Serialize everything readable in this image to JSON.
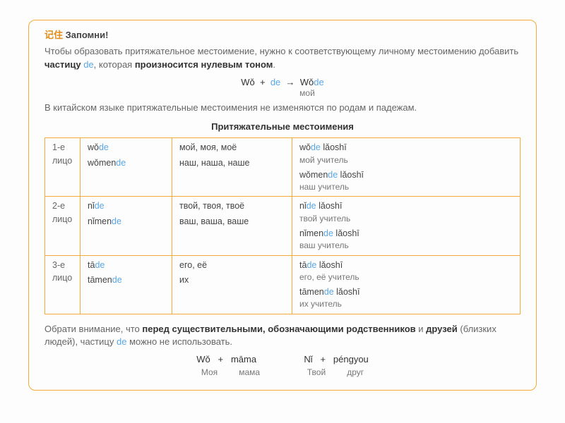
{
  "header": {
    "cn": "记住",
    "ru": "Запомни!"
  },
  "intro": {
    "p1a": "Чтобы образовать притяжательное местоимение, нужно к соответствующему личному местоимению добавить ",
    "p1b": "частицу ",
    "p1c": ", которая ",
    "p1d": "произносится нулевым тоном",
    "p1e": "."
  },
  "formula": {
    "left": "Wǒ",
    "plus": "+",
    "mid": "de",
    "arrow": "→",
    "r1": "Wǒ",
    "r2": "de",
    "sub": "мой"
  },
  "intro2": "В китайском языке притяжательные местоимения не изменяются по родам и падежам.",
  "tableTitle": "Притяжательные местоимения",
  "rows": [
    {
      "label": "1-е лицо",
      "pin1a": "wǒ",
      "pin1b": "de",
      "ru1": "мой, моя, моё",
      "ex1a": "wǒ",
      "ex1b": "de",
      "ex1c": " lǎoshī",
      "ex1t": "мой учитель",
      "pin2a": "wǒmen",
      "pin2b": "de",
      "ru2": "наш, наша, наше",
      "ex2a": "wǒmen",
      "ex2b": "de",
      "ex2c": " lǎoshī",
      "ex2t": "наш учитель"
    },
    {
      "label": "2-е лицо",
      "pin1a": "nǐ",
      "pin1b": "de",
      "ru1": "твой, твоя, твоё",
      "ex1a": "nǐ",
      "ex1b": "de",
      "ex1c": " lǎoshī",
      "ex1t": "твой учитель",
      "pin2a": "nǐmen",
      "pin2b": "de",
      "ru2": "ваш, ваша, ваше",
      "ex2a": "nǐmen",
      "ex2b": "de",
      "ex2c": " lǎoshī",
      "ex2t": "ваш учитель"
    },
    {
      "label": "3-е лицо",
      "pin1a": "tā",
      "pin1b": "de",
      "ru1": "его, её",
      "ex1a": "tā",
      "ex1b": "de",
      "ex1c": " lǎoshī",
      "ex1t": "его, её учитель",
      "pin2a": "tāmen",
      "pin2b": "de",
      "ru2": "их",
      "ex2a": "tāmen",
      "ex2b": "de",
      "ex2c": " lǎoshī",
      "ex2t": "их учитель"
    }
  ],
  "foot": {
    "a": "Обрати внимание, что ",
    "b": "перед существительными, обозначающими родственников",
    "c": " и ",
    "d": "друзей",
    "e": " (близких людей), частицу ",
    "g": " можно не использовать."
  },
  "ex": {
    "l1": "Wǒ",
    "plus": "+",
    "l2": "māma",
    "r1": "Nǐ",
    "r2": "péngyou",
    "lt1": "Моя",
    "lt2": "мама",
    "rt1": "Твой",
    "rt2": "друг"
  }
}
